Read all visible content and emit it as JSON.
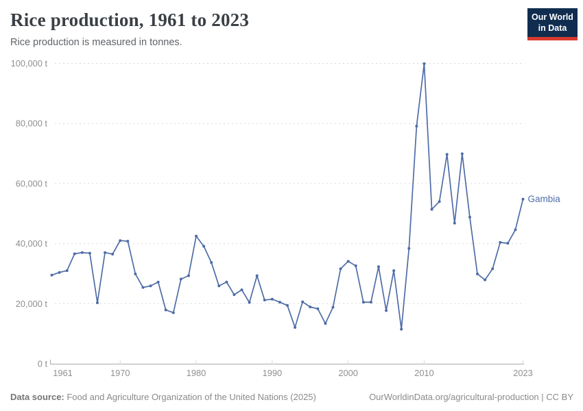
{
  "header": {
    "title": "Rice production, 1961 to 2023",
    "subtitle": "Rice production is measured in tonnes.",
    "logo": {
      "line1": "Our World",
      "line2": "in Data"
    }
  },
  "footer": {
    "source_label": "Data source:",
    "source_text": " Food and Agriculture Organization of the United Nations (2025)",
    "right_text": "OurWorldinData.org/agricultural-production | CC BY"
  },
  "colors": {
    "series_blue": "#4e6ca6",
    "gridline": "#d9d9d9",
    "axis": "#a8a8a8",
    "tick_label": "#8f8f8f",
    "logo_navy": "#102d50",
    "logo_red": "#d93a2d"
  },
  "chart_data": {
    "type": "line",
    "title": "Rice production, 1961 to 2023",
    "unit": "t",
    "xlabel": "",
    "ylabel": "",
    "xlim": [
      1961,
      2023
    ],
    "ylim": [
      0,
      100000
    ],
    "grid": "horizontal-dashed",
    "legend_position": "end-of-line-label",
    "x_ticks": [
      1961,
      1970,
      1980,
      1990,
      2000,
      2010,
      2023
    ],
    "y_ticks": [
      0,
      20000,
      40000,
      60000,
      80000,
      100000
    ],
    "y_tick_suffix": " t",
    "entity_label": "Gambia",
    "series": [
      {
        "name": "Gambia",
        "x": [
          1961,
          1962,
          1963,
          1964,
          1965,
          1966,
          1967,
          1968,
          1969,
          1970,
          1971,
          1972,
          1973,
          1974,
          1975,
          1976,
          1977,
          1978,
          1979,
          1980,
          1981,
          1982,
          1983,
          1984,
          1985,
          1986,
          1987,
          1988,
          1989,
          1990,
          1991,
          1992,
          1993,
          1994,
          1995,
          1996,
          1997,
          1998,
          1999,
          2000,
          2001,
          2002,
          2003,
          2004,
          2005,
          2006,
          2007,
          2008,
          2009,
          2010,
          2011,
          2012,
          2013,
          2014,
          2015,
          2016,
          2017,
          2018,
          2019,
          2020,
          2021,
          2022,
          2023
        ],
        "values": [
          29500,
          30400,
          31000,
          36600,
          37000,
          36800,
          20300,
          37000,
          36500,
          41000,
          40800,
          29900,
          25400,
          25900,
          27200,
          17900,
          17000,
          28200,
          29300,
          42500,
          39100,
          33700,
          25900,
          27200,
          23000,
          24600,
          20400,
          29300,
          21200,
          21500,
          20500,
          19400,
          12100,
          20600,
          18900,
          18300,
          13400,
          18800,
          31600,
          34100,
          32600,
          20500,
          20500,
          32300,
          17700,
          31000,
          11500,
          38400,
          79100,
          99900,
          51400,
          54000,
          69700,
          46800,
          69900,
          48800,
          29900,
          27900,
          31600,
          40400,
          40100,
          44600,
          54800
        ]
      }
    ]
  }
}
